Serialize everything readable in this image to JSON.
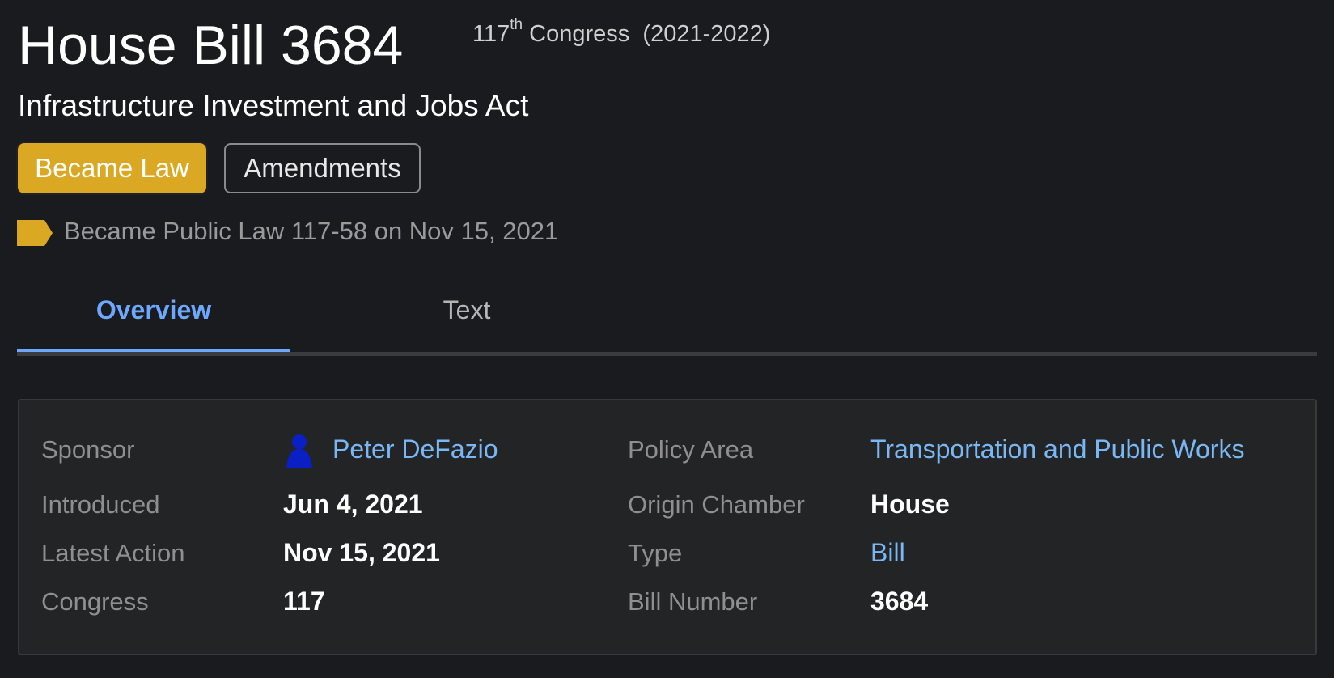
{
  "header": {
    "title": "House Bill 3684",
    "congress_number": "117",
    "congress_suffix": "th",
    "congress_label": "Congress",
    "congress_years": "(2021-2022)",
    "subtitle": "Infrastructure Investment and Jobs Act"
  },
  "buttons": {
    "status": "Became Law",
    "amendments": "Amendments"
  },
  "law_status": {
    "text": "Became Public Law 117-58 on Nov 15, 2021",
    "flag_color": "#dba824"
  },
  "tabs": [
    {
      "label": "Overview",
      "active": true
    },
    {
      "label": "Text",
      "active": false
    }
  ],
  "details": {
    "sponsor": {
      "label": "Sponsor",
      "value": "Peter DeFazio",
      "icon": "person-icon"
    },
    "introduced": {
      "label": "Introduced",
      "value": "Jun 4, 2021"
    },
    "latest_action": {
      "label": "Latest Action",
      "value": "Nov 15, 2021"
    },
    "congress": {
      "label": "Congress",
      "value": "117"
    },
    "policy_area": {
      "label": "Policy Area",
      "value": "Transportation and Public Works"
    },
    "origin_chamber": {
      "label": "Origin Chamber",
      "value": "House"
    },
    "type": {
      "label": "Type",
      "value": "Bill"
    },
    "bill_number": {
      "label": "Bill Number",
      "value": "3684"
    }
  },
  "colors": {
    "accent": "#6ea8fe",
    "link": "#7ab8f5",
    "status": "#dba824",
    "background": "#1a1b1e"
  }
}
